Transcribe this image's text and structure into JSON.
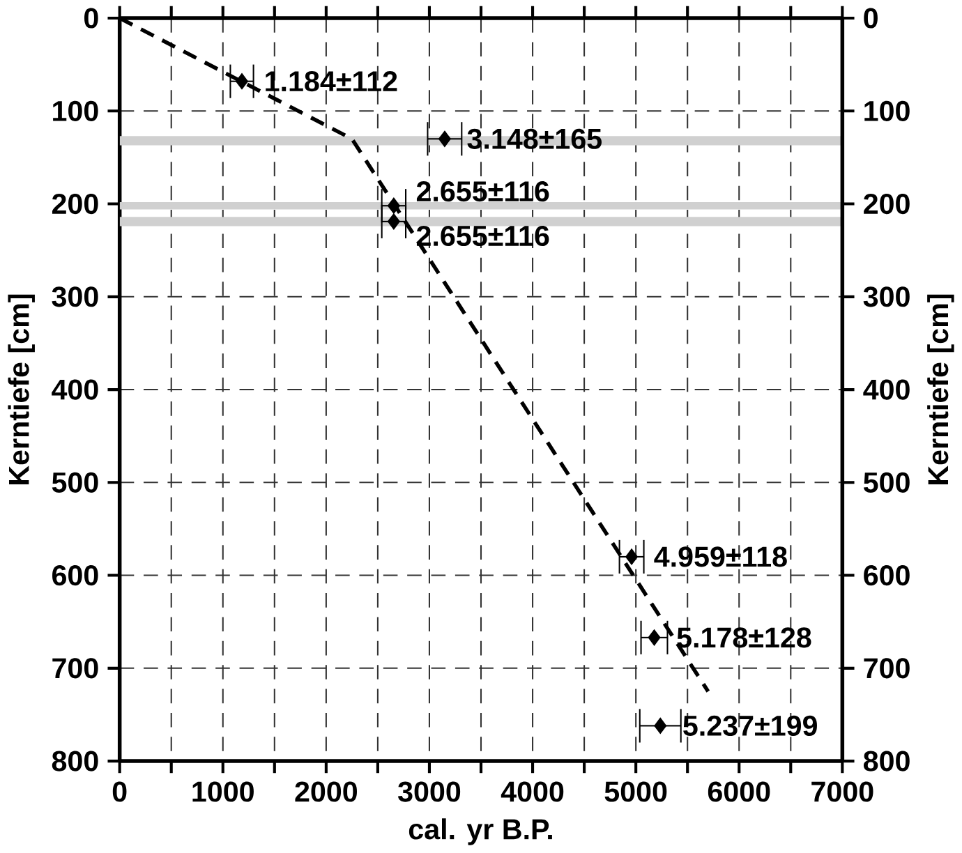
{
  "chart_data": {
    "type": "scatter",
    "xlabel": "cal. yr B.P.",
    "ylabel": "Kerntiefe [cm]",
    "y2label": "Kerntiefe [cm]",
    "xlim": [
      0,
      7000
    ],
    "xticks": [
      0,
      {
        "value": 500,
        "label": null
      },
      1000,
      {
        "value": 1500,
        "label": null
      },
      2000,
      {
        "value": 2500,
        "label": null
      },
      3000,
      {
        "value": 3500,
        "label": null
      },
      4000,
      {
        "value": 4500,
        "label": null
      },
      5000,
      {
        "value": 5500,
        "label": null
      },
      6000,
      {
        "value": 6500,
        "label": null
      },
      7000
    ],
    "ylim": [
      800,
      0
    ],
    "yticks": [
      0,
      100,
      200,
      300,
      400,
      500,
      600,
      700,
      800
    ],
    "y2lim": [
      800,
      0
    ],
    "y2ticks": [
      0,
      100,
      200,
      300,
      400,
      500,
      600,
      700,
      800
    ],
    "grid": true,
    "series": [
      {
        "type": "line",
        "color": "#000000",
        "line_style": "dashed",
        "marker": "none",
        "x": [
          0,
          2250,
          5700
        ],
        "values": [
          0,
          130,
          725
        ]
      },
      {
        "color": "#000000",
        "marker": "diamond",
        "x": [
          1184,
          3148,
          2655,
          2655,
          4959,
          5178,
          5237
        ],
        "values": [
          68,
          130,
          202,
          219,
          580,
          667,
          762
        ],
        "xerrors": [
          112,
          165,
          116,
          116,
          118,
          128,
          199
        ]
      }
    ],
    "bands": [
      {
        "axis": "y",
        "from": 127,
        "to": 137,
        "color": "#d0d0d0"
      },
      {
        "axis": "y",
        "from": 198,
        "to": 206,
        "color": "#d0d0d0"
      },
      {
        "axis": "y",
        "from": 214,
        "to": 224,
        "color": "#d0d0d0"
      }
    ],
    "annotations": [
      {
        "text": "1.184±112",
        "x": 1184,
        "y": 68
      },
      {
        "text": "3.148±165",
        "x": 3148,
        "y": 130
      },
      {
        "text": "2.655±116",
        "x": 2655,
        "y": 202
      },
      {
        "text": "2.655±116",
        "x": 2655,
        "y": 219
      },
      {
        "text": "4.959±118",
        "x": 4959,
        "y": 580
      },
      {
        "text": "5.178±128",
        "x": 5178,
        "y": 667
      },
      {
        "text": "5.237±199",
        "x": 5237,
        "y": 762
      }
    ]
  }
}
